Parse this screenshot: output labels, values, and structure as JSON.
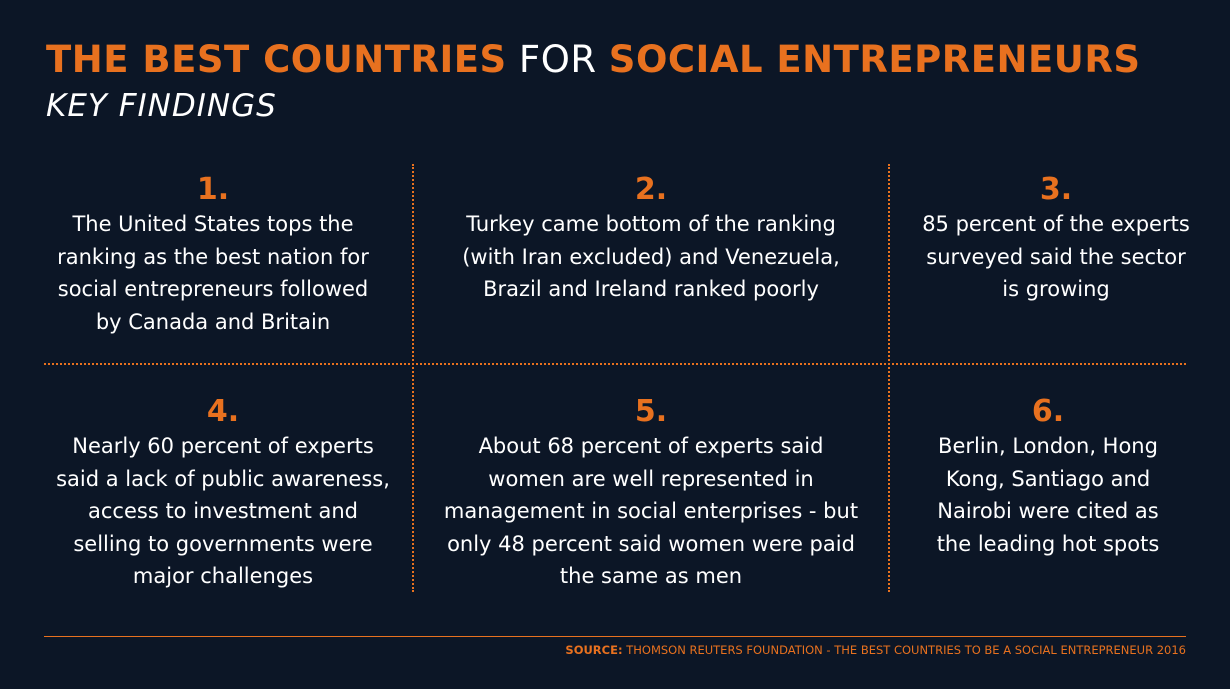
{
  "title": {
    "part1": "THE BEST COUNTRIES",
    "part2": " FOR ",
    "part3": "SOCIAL ENTREPRENEURS"
  },
  "subtitle": "KEY FINDINGS",
  "findings": [
    {
      "number": "1.",
      "text": "The United States tops the\nranking as the best nation for\nsocial entrepreneurs followed\nby Canada and Britain"
    },
    {
      "number": "2.",
      "text": "Turkey came bottom of the ranking\n(with Iran excluded)  and Venezuela,\nBrazil and Ireland ranked poorly"
    },
    {
      "number": "3.",
      "text": "85 percent of the experts\nsurveyed said the sector\nis growing"
    },
    {
      "number": "4.",
      "text": "Nearly 60 percent of experts\nsaid a lack of public awareness,\naccess to investment and\nselling to governments were\nmajor challenges"
    },
    {
      "number": "5.",
      "text": "About 68 percent of experts said\nwomen are well represented in\nmanagement in social enterprises - but\nonly 48 percent said women were paid\nthe same as men"
    },
    {
      "number": "6.",
      "text": "Berlin, London, Hong\nKong, Santiago and\nNairobi were cited as\nthe leading hot spots"
    }
  ],
  "source": {
    "label": "SOURCE:",
    "text": " THOMSON REUTERS FOUNDATION - THE BEST COUNTRIES TO BE A SOCIAL ENTREPRENEUR 2016"
  },
  "colors": {
    "background": "#0c1626",
    "accent": "#e8711f",
    "text": "#ffffff"
  }
}
